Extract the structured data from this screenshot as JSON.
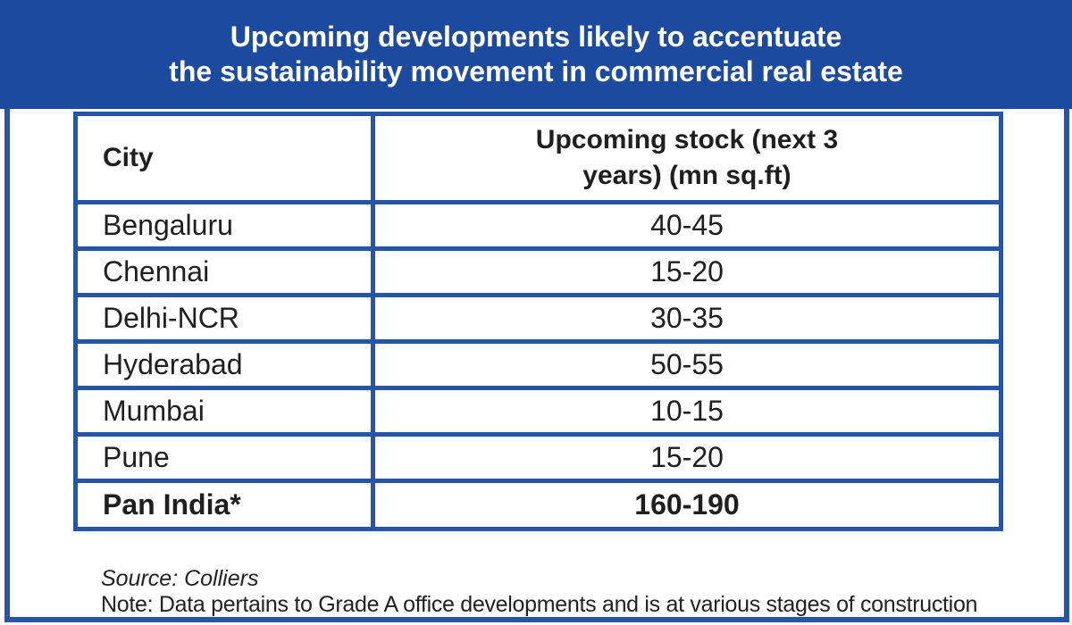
{
  "colors": {
    "banner_blue": "#1b4a9f",
    "border_blue": "#2854a6",
    "text_dark": "#1f1f1f",
    "background": "#ffffff",
    "title_text": "#ffffff"
  },
  "banner": {
    "title_line1": "Upcoming developments likely to accentuate",
    "title_line2": "the sustainability movement in commercial real estate"
  },
  "table": {
    "header": {
      "city": "City",
      "stock": "Upcoming stock (next 3\nyears) (mn sq.ft)"
    },
    "rows": [
      {
        "city": "Bengaluru",
        "stock": "40-45"
      },
      {
        "city": "Chennai",
        "stock": "15-20"
      },
      {
        "city": "Delhi-NCR",
        "stock": "30-35"
      },
      {
        "city": "Hyderabad",
        "stock": "50-55"
      },
      {
        "city": "Mumbai",
        "stock": "10-15"
      },
      {
        "city": "Pune",
        "stock": "15-20"
      }
    ],
    "total_row": {
      "city": "Pan India*",
      "stock": "160-190"
    }
  },
  "footer": {
    "source": "Source: Colliers",
    "note": "Note: Data pertains to Grade A office developments and is at various stages of construction"
  },
  "chart_data": {
    "type": "table",
    "title": "Upcoming developments likely to accentuate the sustainability movement in commercial real estate",
    "columns": [
      "City",
      "Upcoming stock (next 3 years) (mn sq.ft)"
    ],
    "rows": [
      [
        "Bengaluru",
        "40-45"
      ],
      [
        "Chennai",
        "15-20"
      ],
      [
        "Delhi-NCR",
        "30-35"
      ],
      [
        "Hyderabad",
        "50-55"
      ],
      [
        "Mumbai",
        "10-15"
      ],
      [
        "Pune",
        "15-20"
      ],
      [
        "Pan India*",
        "160-190"
      ]
    ],
    "source": "Colliers",
    "note": "Data pertains to Grade A office developments and is at various stages of construction"
  }
}
